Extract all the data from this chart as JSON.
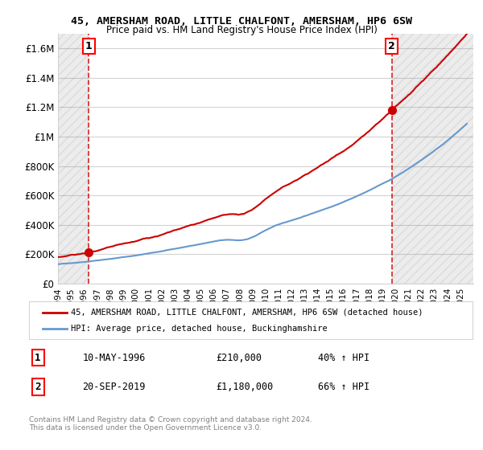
{
  "title1": "45, AMERSHAM ROAD, LITTLE CHALFONT, AMERSHAM, HP6 6SW",
  "title2": "Price paid vs. HM Land Registry's House Price Index (HPI)",
  "ylabel_ticks": [
    "£0",
    "£200K",
    "£400K",
    "£600K",
    "£800K",
    "£1M",
    "£1.2M",
    "£1.4M",
    "£1.6M"
  ],
  "ylabel_values": [
    0,
    200000,
    400000,
    600000,
    800000,
    1000000,
    1200000,
    1400000,
    1600000
  ],
  "ylim": [
    0,
    1700000
  ],
  "sale1_date": 1996.37,
  "sale1_price": 210000,
  "sale1_label": "1",
  "sale2_date": 2019.72,
  "sale2_price": 1180000,
  "sale2_label": "2",
  "legend_line1": "45, AMERSHAM ROAD, LITTLE CHALFONT, AMERSHAM, HP6 6SW (detached house)",
  "legend_line2": "HPI: Average price, detached house, Buckinghamshire",
  "info1_num": "1",
  "info1_date": "10-MAY-1996",
  "info1_price": "£210,000",
  "info1_hpi": "40% ↑ HPI",
  "info2_num": "2",
  "info2_date": "20-SEP-2019",
  "info2_price": "£1,180,000",
  "info2_hpi": "66% ↑ HPI",
  "footer": "Contains HM Land Registry data © Crown copyright and database right 2024.\nThis data is licensed under the Open Government Licence v3.0.",
  "house_color": "#cc0000",
  "hpi_color": "#6699cc",
  "dashed_color": "#cc0000",
  "marker_color": "#cc0000",
  "xmin": 1994,
  "xmax": 2026,
  "xticks": [
    1994,
    1995,
    1996,
    1997,
    1998,
    1999,
    2000,
    2001,
    2002,
    2003,
    2004,
    2005,
    2006,
    2007,
    2008,
    2009,
    2010,
    2011,
    2012,
    2013,
    2014,
    2015,
    2016,
    2017,
    2018,
    2019,
    2020,
    2021,
    2022,
    2023,
    2024,
    2025
  ]
}
